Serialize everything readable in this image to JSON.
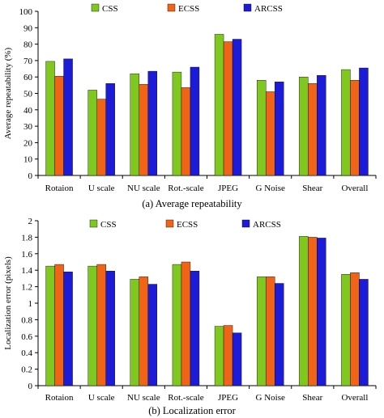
{
  "chart_data": [
    {
      "type": "bar",
      "caption": "(a) Average repeatability",
      "ylabel": "Average repeatability (%)",
      "ylim": [
        0,
        100
      ],
      "yticks": [
        "0",
        "10",
        "20",
        "30",
        "40",
        "50",
        "60",
        "70",
        "80",
        "90",
        "100"
      ],
      "categories": [
        "Rotaion",
        "U scale",
        "NU scale",
        "Rot.-scale",
        "JPEG",
        "G Noise",
        "Shear",
        "Overall"
      ],
      "legend_position": "top",
      "grid": false,
      "series": [
        {
          "name": "CSS",
          "color": "#80c820",
          "values": [
            69.5,
            52,
            62,
            63,
            86,
            58,
            60,
            64.5
          ]
        },
        {
          "name": "ECSS",
          "color": "#f06418",
          "values": [
            60.5,
            46.5,
            55.5,
            53.5,
            81.5,
            51,
            56,
            58
          ]
        },
        {
          "name": "ARCSS",
          "color": "#1c1cd8",
          "values": [
            71,
            56,
            63.5,
            66,
            83,
            57,
            61,
            65.5
          ]
        }
      ]
    },
    {
      "type": "bar",
      "caption": "(b) Localization error",
      "ylabel": "Localization error (pixels)",
      "ylim": [
        0,
        2
      ],
      "yticks": [
        "0",
        "0.2",
        "0.4",
        "0.6",
        "0.8",
        "1",
        "1.2",
        "1.4",
        "1.6",
        "1.8",
        "2"
      ],
      "categories": [
        "Rotaion",
        "U scale",
        "NU scale",
        "Rot.-scale",
        "JPEG",
        "G Noise",
        "Shear",
        "Overall"
      ],
      "legend_position": "top-right",
      "grid": false,
      "series": [
        {
          "name": "CSS",
          "color": "#80c820",
          "values": [
            1.45,
            1.45,
            1.29,
            1.47,
            0.72,
            1.32,
            1.81,
            1.35
          ]
        },
        {
          "name": "ECSS",
          "color": "#f06418",
          "values": [
            1.47,
            1.47,
            1.32,
            1.5,
            0.73,
            1.32,
            1.8,
            1.37
          ]
        },
        {
          "name": "ARCSS",
          "color": "#1c1cd8",
          "values": [
            1.38,
            1.39,
            1.23,
            1.39,
            0.64,
            1.24,
            1.79,
            1.29
          ]
        }
      ]
    }
  ]
}
